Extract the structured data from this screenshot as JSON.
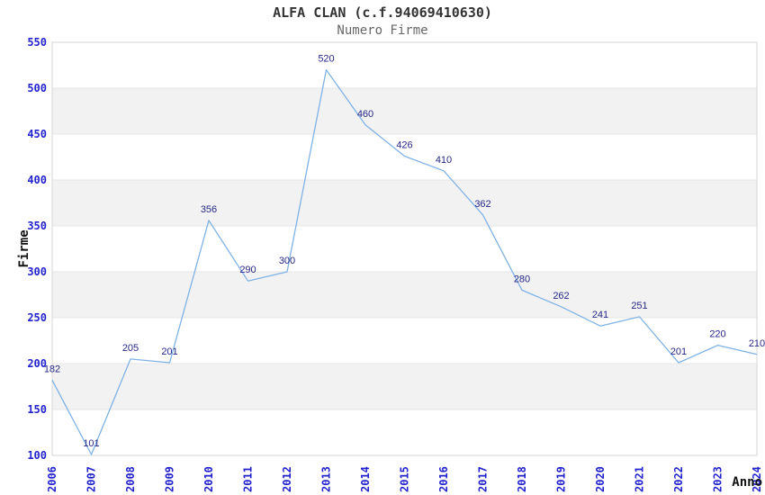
{
  "chart_data": {
    "type": "line",
    "title": "ALFA CLAN (c.f.94069410630)",
    "subtitle": "Numero Firme",
    "xlabel": "Anno",
    "ylabel": "Firme",
    "x": [
      "2006",
      "2007",
      "2008",
      "2009",
      "2010",
      "2011",
      "2012",
      "2013",
      "2014",
      "2015",
      "2016",
      "2017",
      "2018",
      "2019",
      "2020",
      "2021",
      "2022",
      "2023",
      "2024"
    ],
    "values": [
      182,
      101,
      205,
      201,
      356,
      290,
      300,
      520,
      460,
      426,
      410,
      362,
      280,
      262,
      241,
      251,
      201,
      220,
      210
    ],
    "ylim": [
      100,
      550
    ],
    "ytick_step": 50,
    "yticks": [
      100,
      150,
      200,
      250,
      300,
      350,
      400,
      450,
      500,
      550
    ],
    "grid": true,
    "legend": "none",
    "point_labels_visible": true,
    "colors": {
      "line": "#7fb2e5",
      "point_labels": "#262687",
      "tick_labels": "#2222cc",
      "axis_titles": "#111111",
      "title": "#333333",
      "subtitle": "#666666",
      "band": "#f2f2f2",
      "gridline": "#e6e6e6",
      "border": "#d6d6d6",
      "background": "#ffffff"
    }
  }
}
